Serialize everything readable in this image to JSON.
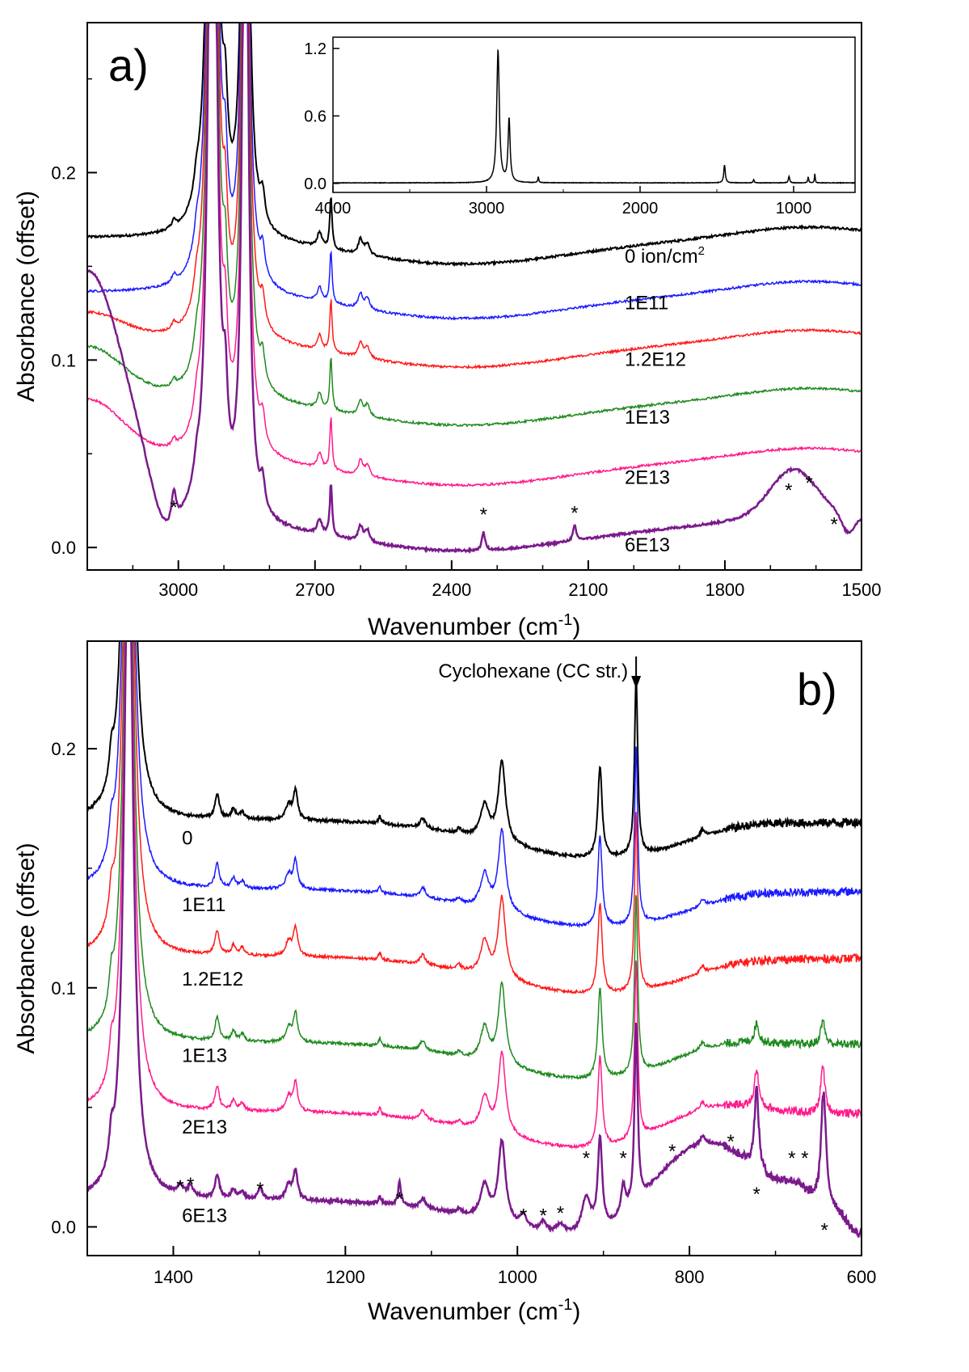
{
  "chart_data": [
    {
      "type": "line",
      "panel_label": "a)",
      "xlabel": "Wavenumber (cm",
      "xlabel_sup": "-1",
      "xlabel_end": ")",
      "ylabel": "Absorbance (offset)",
      "xlim": [
        3200,
        1500
      ],
      "ylim": [
        -0.012,
        0.28
      ],
      "xticks": [
        {
          "v": 3000,
          "t": "3000"
        },
        {
          "v": 2700,
          "t": "2700"
        },
        {
          "v": 2400,
          "t": "2400"
        },
        {
          "v": 2100,
          "t": "2100"
        },
        {
          "v": 1800,
          "t": "1800"
        },
        {
          "v": 1500,
          "t": "1500"
        }
      ],
      "yticks": [
        {
          "v": 0.0,
          "t": "0.0"
        },
        {
          "v": 0.1,
          "t": "0.1"
        },
        {
          "v": 0.2,
          "t": "0.2"
        }
      ],
      "series": [
        {
          "name": "0 ion/cm²",
          "label": "0 ion/cm",
          "label_sup": "2",
          "color": "#000000",
          "offset": 0.165,
          "label_x": 2020,
          "label_y": 0.152,
          "width": 2
        },
        {
          "name": "1E11",
          "label": "1E11",
          "label_sup": "",
          "color": "#1a1aff",
          "offset": 0.136,
          "label_x": 2020,
          "label_y": 0.127,
          "width": 1.5
        },
        {
          "name": "1.2E12",
          "label": "1.2E12",
          "label_sup": "",
          "color": "#ff1a1a",
          "offset": 0.11,
          "label_x": 2020,
          "label_y": 0.097,
          "width": 1.5
        },
        {
          "name": "1E13",
          "label": "1E13",
          "label_sup": "",
          "color": "#1f8a1f",
          "offset": 0.079,
          "label_x": 2020,
          "label_y": 0.066,
          "width": 1.5
        },
        {
          "name": "2E13",
          "label": "2E13",
          "label_sup": "",
          "color": "#ff1a8c",
          "offset": 0.047,
          "label_x": 2020,
          "label_y": 0.034,
          "width": 1.5
        },
        {
          "name": "6E13",
          "label": "6E13",
          "label_sup": "",
          "color": "#7b1a8c",
          "offset": 0.012,
          "label_x": 2020,
          "label_y": -0.002,
          "width": 2.5
        }
      ],
      "stars": [
        {
          "x": 3010,
          "y": 0.018
        },
        {
          "x": 2330,
          "y": 0.014
        },
        {
          "x": 2130,
          "y": 0.015
        },
        {
          "x": 1660,
          "y": 0.027
        },
        {
          "x": 1615,
          "y": 0.031
        },
        {
          "x": 1560,
          "y": 0.009
        }
      ],
      "inset": {
        "xlim": [
          4000,
          600
        ],
        "ylim": [
          -0.08,
          1.3
        ],
        "xticks": [
          {
            "v": 4000,
            "t": "4000"
          },
          {
            "v": 3000,
            "t": "3000"
          },
          {
            "v": 2000,
            "t": "2000"
          },
          {
            "v": 1000,
            "t": "1000"
          }
        ],
        "yticks": [
          {
            "v": 0.0,
            "t": "0.0"
          },
          {
            "v": 0.6,
            "t": "0.6"
          },
          {
            "v": 1.2,
            "t": "1.2"
          }
        ],
        "peaks": [
          {
            "x": 2925,
            "a": 1.18,
            "w": 10
          },
          {
            "x": 2853,
            "a": 0.56,
            "w": 8
          },
          {
            "x": 2663,
            "a": 0.05,
            "w": 4
          },
          {
            "x": 1450,
            "a": 0.16,
            "w": 6
          },
          {
            "x": 1260,
            "a": 0.03,
            "w": 4
          },
          {
            "x": 1030,
            "a": 0.06,
            "w": 5
          },
          {
            "x": 905,
            "a": 0.05,
            "w": 4
          },
          {
            "x": 862,
            "a": 0.08,
            "w": 3
          }
        ]
      }
    },
    {
      "type": "line",
      "panel_label": "b)",
      "xlabel": "Wavenumber (cm",
      "xlabel_sup": "-1",
      "xlabel_end": ")",
      "ylabel": "Absorbance (offset)",
      "xlim": [
        1500,
        600
      ],
      "ylim": [
        -0.012,
        0.245
      ],
      "xticks": [
        {
          "v": 1400,
          "t": "1400"
        },
        {
          "v": 1200,
          "t": "1200"
        },
        {
          "v": 1000,
          "t": "1000"
        },
        {
          "v": 800,
          "t": "800"
        },
        {
          "v": 600,
          "t": "600"
        }
      ],
      "yticks": [
        {
          "v": 0.0,
          "t": "0.0"
        },
        {
          "v": 0.1,
          "t": "0.1"
        },
        {
          "v": 0.2,
          "t": "0.2"
        }
      ],
      "annotation": "Cyclohexane (CC str.)",
      "annotation_x": 862,
      "series": [
        {
          "name": "0",
          "label": "0",
          "color": "#000000",
          "offset": 0.17,
          "label_x": 1390,
          "label_y": 0.16,
          "width": 2
        },
        {
          "name": "1E11",
          "label": "1E11",
          "color": "#1a1aff",
          "offset": 0.141,
          "label_x": 1390,
          "label_y": 0.132,
          "width": 1.5
        },
        {
          "name": "1.2E12",
          "label": "1.2E12",
          "color": "#ff1a1a",
          "offset": 0.113,
          "label_x": 1390,
          "label_y": 0.101,
          "width": 1.5
        },
        {
          "name": "1E13",
          "label": "1E13",
          "color": "#1f8a1f",
          "offset": 0.077,
          "label_x": 1390,
          "label_y": 0.069,
          "width": 1.5
        },
        {
          "name": "2E13",
          "label": "2E13",
          "color": "#ff1a8c",
          "offset": 0.048,
          "label_x": 1390,
          "label_y": 0.039,
          "width": 1.5
        },
        {
          "name": "6E13",
          "label": "6E13",
          "color": "#7b1a8c",
          "offset": 0.011,
          "label_x": 1390,
          "label_y": 0.002,
          "width": 2.5
        }
      ],
      "stars": [
        {
          "x": 1392,
          "y": 0.014
        },
        {
          "x": 1380,
          "y": 0.015
        },
        {
          "x": 1299,
          "y": 0.013
        },
        {
          "x": 1137,
          "y": 0.009
        },
        {
          "x": 993,
          "y": 0.002
        },
        {
          "x": 970,
          "y": 0.002
        },
        {
          "x": 950,
          "y": 0.003
        },
        {
          "x": 920,
          "y": 0.026
        },
        {
          "x": 877,
          "y": 0.026
        },
        {
          "x": 820,
          "y": 0.029
        },
        {
          "x": 752,
          "y": 0.033
        },
        {
          "x": 681,
          "y": 0.026
        },
        {
          "x": 666,
          "y": 0.026
        },
        {
          "x": 722,
          "y": 0.011
        },
        {
          "x": 643,
          "y": -0.004
        }
      ]
    }
  ]
}
